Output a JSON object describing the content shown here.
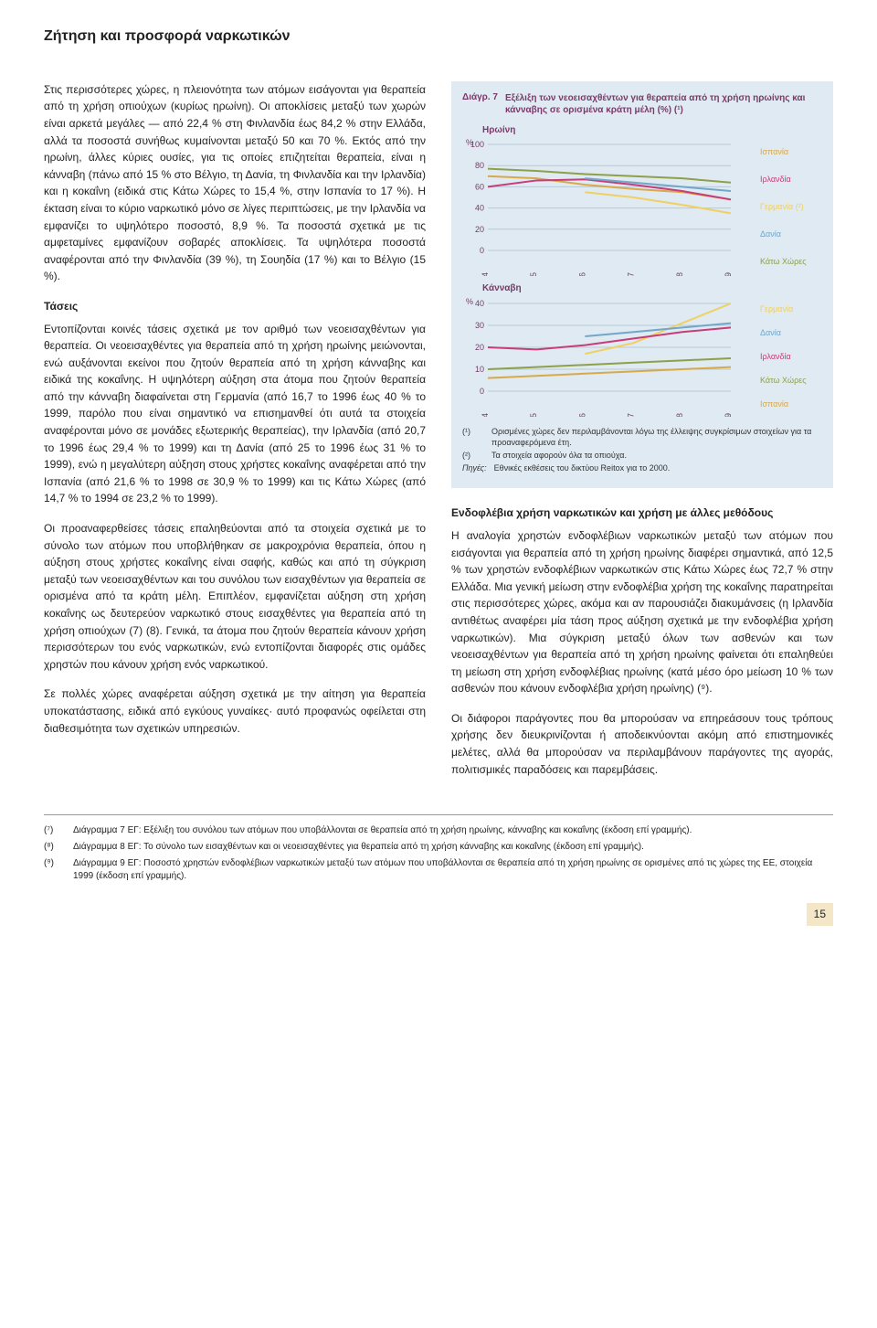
{
  "page_title": "Ζήτηση και προσφορά ναρκωτικών",
  "left": {
    "p1": "Στις περισσότερες χώρες, η πλειονότητα των ατόμων εισάγονται για θεραπεία από τη χρήση οπιούχων (κυρίως ηρωίνη). Οι αποκλίσεις μεταξύ των χωρών είναι αρκετά μεγάλες — από 22,4 % στη Φινλανδία έως 84,2 % στην Ελλάδα, αλλά τα ποσοστά συνήθως κυμαίνονται μεταξύ 50 και 70 %. Εκτός από την ηρωίνη, άλλες κύριες ουσίες, για τις οποίες επιζητείται θεραπεία, είναι η κάνναβη (πάνω από 15 % στο Βέλγιο, τη Δανία, τη Φινλανδία και την Ιρλανδία) και η κοκαΐνη (ειδικά στις Κάτω Χώρες το 15,4 %, στην Ισπανία το 17 %). Η έκταση είναι το κύριο ναρκωτικό μόνο σε λίγες περιπτώσεις, με την Ιρλανδία να εμφανίζει το υψηλότερο ποσοστό, 8,9 %. Τα ποσοστά σχετικά με τις αμφεταμίνες εμφανίζουν σοβαρές αποκλίσεις. Τα υψηλότερα ποσοστά αναφέρονται από την Φινλανδία (39 %), τη Σουηδία (17 %) και το Βέλγιο (15 %).",
    "h_trends": "Τάσεις",
    "p2": "Εντοπίζονται κοινές τάσεις σχετικά με τον αριθμό των νεοεισαχθέντων για θεραπεία. Οι νεοεισαχθέντες για θεραπεία από τη χρήση ηρωίνης μειώνονται, ενώ αυξάνονται εκείνοι που ζητούν θεραπεία από τη χρήση κάνναβης και ειδικά της κοκαΐνης. Η υψηλότερη αύξηση στα άτομα που ζητούν θεραπεία από την κάνναβη διαφαίνεται στη Γερμανία (από 16,7 το 1996 έως 40 % το 1999, παρόλο που είναι σημαντικό να επισημανθεί ότι αυτά τα στοιχεία αναφέρονται μόνο σε μονάδες εξωτερικής θεραπείας), την Ιρλανδία (από 20,7 το 1996 έως 29,4 % το 1999) και τη Δανία (από 25 το 1996 έως 31 % το 1999), ενώ η μεγαλύτερη αύξηση στους χρήστες κοκαΐνης αναφέρεται από την Ισπανία (από 21,6 % το 1998 σε 30,9 % το 1999) και τις Κάτω Χώρες (από 14,7 % το 1994 σε 23,2 % το 1999).",
    "p3": "Οι προαναφερθείσες τάσεις επαληθεύονται από τα στοιχεία σχετικά με το σύνολο των ατόμων που υποβλήθηκαν σε μακροχρόνια θεραπεία, όπου η αύξηση στους χρήστες κοκαΐνης είναι σαφής, καθώς και από τη σύγκριση μεταξύ των νεοεισαχθέντων και του συνόλου των εισαχθέντων για θεραπεία σε ορισμένα από τα κράτη μέλη. Επιπλέον, εμφανίζεται αύξηση στη χρήση κοκαΐνης ως δευτερεύον ναρκωτικό στους εισαχθέντες για θεραπεία από τη χρήση οπιούχων (7) (8). Γενικά, τα άτομα που ζητούν θεραπεία κάνουν χρήση περισσότερων του ενός ναρκωτικών, ενώ εντοπίζονται διαφορές στις ομάδες χρηστών που κάνουν χρήση ενός ναρκωτικού.",
    "p4": "Σε πολλές χώρες αναφέρεται αύξηση σχετικά με την αίτηση για θεραπεία υποκατάστασης, ειδικά από εγκύους γυναίκες· αυτό προφανώς οφείλεται στη διαθεσιμότητα των σχετικών υπηρεσιών."
  },
  "chart": {
    "tag": "Διάγρ. 7",
    "title": "Εξέλιξη των νεοεισαχθέντων για θεραπεία από τη χρήση ηρωίνης και κάνναβης σε ορισμένα κράτη μέλη (%) (¹)",
    "sub_heroin": "Ηρωίνη",
    "sub_cannabis": "Κάνναβη",
    "y_unit": "%",
    "heroin": {
      "ylim": [
        0,
        100
      ],
      "ytick_step": 20,
      "years": [
        "1994",
        "1995",
        "1996",
        "1997",
        "1998",
        "1999"
      ],
      "series": [
        {
          "name": "Ισπανία",
          "color": "#d8a94a",
          "values": [
            70,
            68,
            62,
            58,
            55,
            48
          ]
        },
        {
          "name": "Ιρλανδία",
          "color": "#c83c78",
          "values": [
            60,
            66,
            67,
            62,
            56,
            48
          ]
        },
        {
          "name": "Γερμανία (²)",
          "color": "#f0d060",
          "values": [
            null,
            null,
            55,
            50,
            43,
            35
          ]
        },
        {
          "name": "Δανία",
          "color": "#73a7c9",
          "values": [
            null,
            null,
            68,
            64,
            60,
            56
          ]
        },
        {
          "name": "Κάτω Χώρες",
          "color": "#8fa04a",
          "values": [
            77,
            75,
            72,
            70,
            68,
            64
          ]
        }
      ],
      "grid_color": "#b8cad6",
      "bg": "#dfeaf2",
      "line_width": 2
    },
    "cannabis": {
      "ylim": [
        0,
        40
      ],
      "ytick_step": 10,
      "years": [
        "1994",
        "1995",
        "1996",
        "1997",
        "1998",
        "1999"
      ],
      "series": [
        {
          "name": "Γερμανία",
          "color": "#f0d060",
          "values": [
            null,
            null,
            17,
            22,
            31,
            40
          ]
        },
        {
          "name": "Δανία",
          "color": "#73a7c9",
          "values": [
            null,
            null,
            25,
            27,
            29,
            31
          ]
        },
        {
          "name": "Ιρλανδία",
          "color": "#c83c78",
          "values": [
            20,
            19,
            21,
            24,
            27,
            29
          ]
        },
        {
          "name": "Κάτω Χώρες",
          "color": "#8fa04a",
          "values": [
            10,
            11,
            12,
            13,
            14,
            15
          ]
        },
        {
          "name": "Ισπανία",
          "color": "#d8a94a",
          "values": [
            6,
            7,
            8,
            9,
            10,
            11
          ]
        }
      ],
      "grid_color": "#b8cad6",
      "bg": "#dfeaf2",
      "line_width": 2
    },
    "notes": {
      "n1_key": "(¹)",
      "n1": "Ορισμένες χώρες δεν περιλαμβάνονται λόγω της έλλειψης συγκρίσιμων στοιχείων για τα προαναφερόμενα έτη.",
      "n2_key": "(²)",
      "n2": "Τα στοιχεία αφορούν όλα τα οπιούχα.",
      "src_key": "Πηγές:",
      "src": "Εθνικές εκθέσεις του δικτύου Reitox για το 2000."
    }
  },
  "right": {
    "h_iv": "Ενδοφλέβια χρήση ναρκωτικών και χρήση με άλλες μεθόδους",
    "p_iv": "Η αναλογία χρηστών ενδοφλέβιων ναρκωτικών μεταξύ των ατόμων που εισάγονται για θεραπεία από τη χρήση ηρωίνης διαφέρει σημαντικά, από 12,5 % των χρηστών ενδοφλέβιων ναρκωτικών στις Κάτω Χώρες έως 72,7 % στην Ελλάδα. Μια γενική μείωση στην ενδοφλέβια χρήση της κοκαΐνης παρατηρείται στις περισσότερες χώρες, ακόμα και αν παρουσιάζει διακυμάνσεις (η Ιρλανδία αντιθέτως αναφέρει μία τάση προς αύξηση σχετικά με την ενδοφλέβια χρήση ναρκωτικών). Μια σύγκριση μεταξύ όλων των ασθενών και των νεοεισαχθέντων για θεραπεία από τη χρήση ηρωίνης φαίνεται ότι επαληθεύει τη μείωση στη χρήση ενδοφλέβιας ηρωίνης (κατά μέσο όρο μείωση 10 % των ασθενών που κάνουν ενδοφλέβια χρήση ηρωίνης) (⁹).",
    "p_iv2": "Οι διάφοροι παράγοντες που θα μπορούσαν να επηρεάσουν τους τρόπους χρήσης δεν διευκρινίζονται ή αποδεικνύονται ακόμη από επιστημονικές μελέτες, αλλά θα μπορούσαν να περιλαμβάνουν παράγοντες της αγοράς, πολιτισμικές παραδόσεις και παρεμβάσεις."
  },
  "footnotes": {
    "f7_key": "(⁷)",
    "f7": "Διάγραμμα 7 ΕΓ: Εξέλιξη του συνόλου των ατόμων που υποβάλλονται σε θεραπεία από τη χρήση ηρωίνης, κάνναβης και κοκαΐνης (έκδοση επί γραμμής).",
    "f8_key": "(⁸)",
    "f8": "Διάγραμμα 8 ΕΓ: Το σύνολο των εισαχθέντων και οι νεοεισαχθέντες για θεραπεία από τη χρήση κάνναβης και κοκαΐνης (έκδοση επί γραμμής).",
    "f9_key": "(⁹)",
    "f9": "Διάγραμμα 9 ΕΓ: Ποσοστό χρηστών ενδοφλέβιων ναρκωτικών μεταξύ των ατόμων που υποβάλλονται σε θεραπεία από τη χρήση ηρωίνης σε ορισμένες από τις χώρες της ΕΕ, στοιχεία 1999 (έκδοση επί γραμμής)."
  },
  "page_number": "15"
}
